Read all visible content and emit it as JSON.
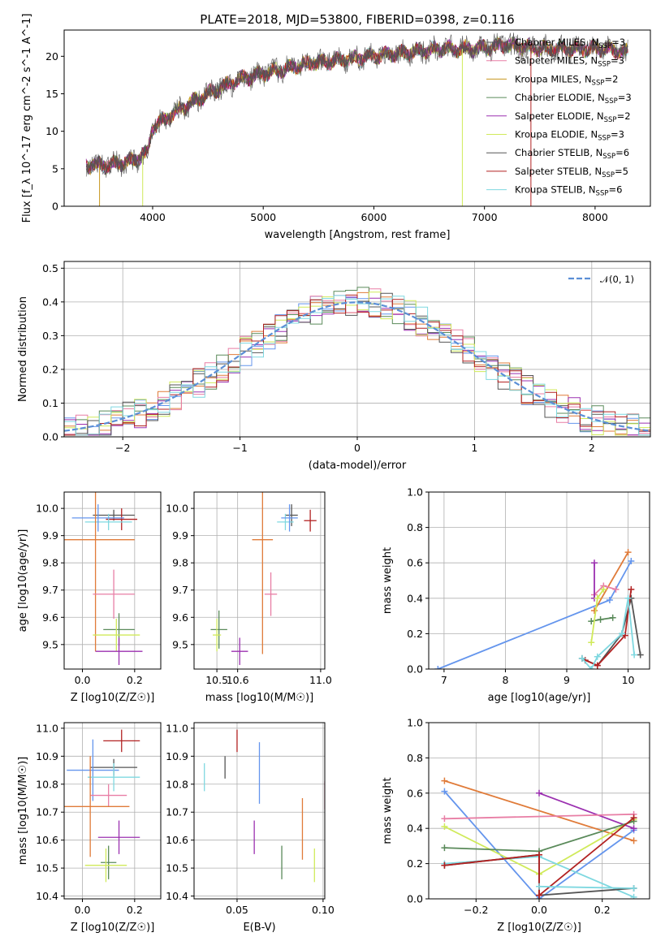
{
  "figure": {
    "title": "PLATE=2018, MJD=53800, FIBERID=0398, z=0.116"
  },
  "colors": {
    "chabrier_miles": "#6495ed",
    "salpeter_miles": "#e07b39",
    "kroupa_miles": "#e07b39",
    "chabrier_elodie": "#5a8a5a",
    "salpeter_elodie": "#9b30b0",
    "kroupa_elodie": "#d0ea5a",
    "chabrier_stelib": "#555555",
    "salpeter_stelib": "#b22222",
    "kroupa_stelib": "#7fd8e0",
    "pink": "#e87ea5",
    "gaussian": "#5b8fd6"
  },
  "chart_data": [
    {
      "id": "spectrum",
      "type": "line",
      "xlabel": "wavelength [Angstrom, rest frame]",
      "ylabel": "Flux [f_λ 10^-17 erg cm^-2 s^-1 A^-1]",
      "xlim": [
        3200,
        8500
      ],
      "ylim": [
        0,
        23.5
      ],
      "xticks": [
        "4000",
        "5000",
        "6000",
        "7000",
        "8000"
      ],
      "yticks": [
        "0",
        "5",
        "10",
        "15",
        "20"
      ],
      "legend_position": "right",
      "legend": [
        {
          "label": "Chabrier MILES, N_SSP=3",
          "color": "#555555"
        },
        {
          "label": "Salpeter MILES, N_SSP=3",
          "color": "#e87ea5"
        },
        {
          "label": "Kroupa MILES, N_SSP=2",
          "color": "#c8961e"
        },
        {
          "label": "Chabrier ELODIE, N_SSP=3",
          "color": "#5a8a5a"
        },
        {
          "label": "Salpeter ELODIE, N_SSP=2",
          "color": "#9b30b0"
        },
        {
          "label": "Kroupa ELODIE, N_SSP=3",
          "color": "#d0ea5a"
        },
        {
          "label": "Chabrier STELIB, N_SSP=6",
          "color": "#555555"
        },
        {
          "label": "Salpeter STELIB, N_SSP=5",
          "color": "#b22222"
        },
        {
          "label": "Kroupa STELIB, N_SSP=6",
          "color": "#7fd8e0"
        }
      ],
      "continuum": {
        "x": [
          3400,
          3600,
          3800,
          3950,
          4000,
          4200,
          4500,
          4800,
          5100,
          5400,
          5700,
          6000,
          6300,
          6600,
          6900,
          7200,
          7500,
          7800,
          8100,
          8300
        ],
        "y": [
          5.5,
          5.5,
          6.0,
          7.0,
          10.5,
          12.5,
          15.0,
          17.0,
          18.0,
          19.0,
          19.5,
          20.0,
          20.5,
          21.0,
          21.0,
          21.5,
          21.0,
          21.0,
          21.0,
          20.5
        ]
      }
    },
    {
      "id": "residuals",
      "type": "line",
      "xlabel": "(data-model)/error",
      "ylabel": "Normed distribution",
      "xlim": [
        -2.5,
        2.5
      ],
      "ylim": [
        0,
        0.52
      ],
      "xticks": [
        "−2",
        "−1",
        "0",
        "1",
        "2"
      ],
      "yticks": [
        "0.0",
        "0.1",
        "0.2",
        "0.3",
        "0.4",
        "0.5"
      ],
      "grid": true,
      "legend_position": "top-right",
      "legend": [
        {
          "label": "𝒩(0, 1)",
          "style": "dashed"
        }
      ]
    },
    {
      "id": "age-vs-Z",
      "type": "scatter",
      "xlabel": "Z [log10(Z/Z☉)]",
      "ylabel": "age  [log10(age/yr)]",
      "xlim": [
        -0.07,
        0.3
      ],
      "ylim": [
        9.41,
        10.06
      ],
      "xticks": [
        "0.0",
        "0.2"
      ],
      "yticks": [
        "9.5",
        "9.6",
        "9.7",
        "9.8",
        "9.9",
        "10.0"
      ],
      "grid": true,
      "points": [
        {
          "x": 0.12,
          "y": 9.975,
          "xerr": 0.08,
          "yerr": 0.02,
          "color": "#555555"
        },
        {
          "x": 0.15,
          "y": 9.96,
          "xerr": 0.06,
          "yerr": 0.04,
          "color": "#b22222"
        },
        {
          "x": 0.1,
          "y": 9.95,
          "xerr": 0.09,
          "yerr": 0.03,
          "color": "#7fd8e0"
        },
        {
          "x": 0.06,
          "y": 9.965,
          "xerr": 0.1,
          "yerr": 0.05,
          "color": "#6495ed"
        },
        {
          "x": 0.05,
          "y": 9.885,
          "xerr": 0.15,
          "yerr": 0.41,
          "color": "#e07b39"
        },
        {
          "x": 0.12,
          "y": 9.685,
          "xerr": 0.08,
          "yerr": 0.09,
          "color": "#e87ea5"
        },
        {
          "x": 0.14,
          "y": 9.555,
          "xerr": 0.06,
          "yerr": 0.06,
          "color": "#5a8a5a"
        },
        {
          "x": 0.13,
          "y": 9.535,
          "xerr": 0.09,
          "yerr": 0.06,
          "color": "#d0ea5a"
        },
        {
          "x": 0.14,
          "y": 9.475,
          "xerr": 0.09,
          "yerr": 0.05,
          "color": "#9b30b0"
        }
      ]
    },
    {
      "id": "age-vs-mass",
      "type": "scatter",
      "xlabel": "mass [log10(M/M☉)]",
      "ylabel": "",
      "xlim": [
        10.39,
        11.02
      ],
      "ylim": [
        9.41,
        10.06
      ],
      "xticks": [
        "10.5",
        "10.6",
        "11.0"
      ],
      "yticks": [
        "9.5",
        "9.6",
        "9.7",
        "9.8",
        "9.9",
        "10.0"
      ],
      "grid": true,
      "points": [
        {
          "x": 10.86,
          "y": 9.975,
          "xerr": 0.03,
          "yerr": 0.04,
          "color": "#555555"
        },
        {
          "x": 10.95,
          "y": 9.955,
          "xerr": 0.03,
          "yerr": 0.04,
          "color": "#b22222"
        },
        {
          "x": 10.83,
          "y": 9.95,
          "xerr": 0.04,
          "yerr": 0.03,
          "color": "#7fd8e0"
        },
        {
          "x": 10.85,
          "y": 9.965,
          "xerr": 0.04,
          "yerr": 0.05,
          "color": "#6495ed"
        },
        {
          "x": 10.72,
          "y": 9.885,
          "xerr": 0.05,
          "yerr": 0.42,
          "color": "#e07b39"
        },
        {
          "x": 10.76,
          "y": 9.685,
          "xerr": 0.03,
          "yerr": 0.08,
          "color": "#e87ea5"
        },
        {
          "x": 10.51,
          "y": 9.555,
          "xerr": 0.04,
          "yerr": 0.07,
          "color": "#5a8a5a"
        },
        {
          "x": 10.5,
          "y": 9.535,
          "xerr": 0.02,
          "yerr": 0.06,
          "color": "#d0ea5a"
        },
        {
          "x": 10.61,
          "y": 9.475,
          "xerr": 0.04,
          "yerr": 0.05,
          "color": "#9b30b0"
        }
      ]
    },
    {
      "id": "weight-vs-age",
      "type": "line",
      "xlabel": "age  [log10(age/yr)]",
      "ylabel": "mass weight",
      "xlim": [
        6.75,
        10.35
      ],
      "ylim": [
        0,
        1.0
      ],
      "xticks": [
        "7",
        "8",
        "9",
        "10"
      ],
      "yticks": [
        "0.0",
        "0.2",
        "0.4",
        "0.6",
        "0.8",
        "1.0"
      ],
      "grid": true,
      "series": [
        {
          "color": "#6495ed",
          "x": [
            6.9,
            9.7,
            10.05
          ],
          "y": [
            0.0,
            0.39,
            0.61
          ]
        },
        {
          "color": "#e07b39",
          "x": [
            9.45,
            10.0
          ],
          "y": [
            0.33,
            0.66
          ]
        },
        {
          "color": "#e87ea5",
          "x": [
            9.45,
            9.6,
            9.8
          ],
          "y": [
            0.42,
            0.47,
            0.45
          ]
        },
        {
          "color": "#9b30b0",
          "x": [
            9.45,
            9.45
          ],
          "y": [
            0.4,
            0.6
          ]
        },
        {
          "color": "#5a8a5a",
          "x": [
            9.4,
            9.55,
            9.75
          ],
          "y": [
            0.27,
            0.28,
            0.29
          ]
        },
        {
          "color": "#d0ea5a",
          "x": [
            9.4,
            9.5,
            9.6
          ],
          "y": [
            0.15,
            0.4,
            0.45
          ]
        },
        {
          "color": "#555555",
          "x": [
            9.25,
            9.5,
            9.9,
            10.05,
            10.2
          ],
          "y": [
            0.06,
            0.02,
            0.2,
            0.4,
            0.08
          ]
        },
        {
          "color": "#b22222",
          "x": [
            9.3,
            9.5,
            9.95,
            10.05
          ],
          "y": [
            0.05,
            0.02,
            0.19,
            0.45
          ]
        },
        {
          "color": "#7fd8e0",
          "x": [
            9.25,
            9.4,
            9.5,
            9.9,
            10.0,
            10.1
          ],
          "y": [
            0.06,
            0.0,
            0.07,
            0.2,
            0.4,
            0.08
          ]
        }
      ]
    },
    {
      "id": "mass-vs-Z",
      "type": "scatter",
      "xlabel": "Z [log10(Z/Z☉)]",
      "ylabel": "mass [log10(M/M☉)]",
      "xlim": [
        -0.07,
        0.3
      ],
      "ylim": [
        10.39,
        11.02
      ],
      "xticks": [
        "0.0",
        "0.2"
      ],
      "yticks": [
        "10.4",
        "10.5",
        "10.6",
        "10.7",
        "10.8",
        "10.9",
        "11.0"
      ],
      "grid": true,
      "points": [
        {
          "x": 0.15,
          "y": 10.955,
          "xerr": 0.07,
          "yerr": 0.04,
          "color": "#b22222"
        },
        {
          "x": 0.12,
          "y": 10.86,
          "xerr": 0.09,
          "yerr": 0.03,
          "color": "#555555"
        },
        {
          "x": 0.04,
          "y": 10.85,
          "xerr": 0.1,
          "yerr": 0.11,
          "color": "#6495ed"
        },
        {
          "x": 0.12,
          "y": 10.825,
          "xerr": 0.1,
          "yerr": 0.05,
          "color": "#7fd8e0"
        },
        {
          "x": 0.1,
          "y": 10.76,
          "xerr": 0.07,
          "yerr": 0.04,
          "color": "#e87ea5"
        },
        {
          "x": 0.03,
          "y": 10.72,
          "xerr": 0.15,
          "yerr": 0.18,
          "color": "#e07b39"
        },
        {
          "x": 0.14,
          "y": 10.61,
          "xerr": 0.08,
          "yerr": 0.06,
          "color": "#9b30b0"
        },
        {
          "x": 0.1,
          "y": 10.52,
          "xerr": 0.03,
          "yerr": 0.06,
          "color": "#5a8a5a"
        },
        {
          "x": 0.09,
          "y": 10.51,
          "xerr": 0.08,
          "yerr": 0.06,
          "color": "#d0ea5a"
        }
      ]
    },
    {
      "id": "mass-vs-EBV",
      "type": "scatter",
      "xlabel": "E(B-V)",
      "ylabel": "",
      "xlim": [
        0.025,
        0.101
      ],
      "ylim": [
        10.39,
        11.02
      ],
      "xticks": [
        "0.05",
        "0.10"
      ],
      "yticks": [
        "10.4",
        "10.5",
        "10.6",
        "10.7",
        "10.8",
        "10.9",
        "11.0"
      ],
      "grid": true,
      "points": [
        {
          "x": 0.05,
          "y": 10.955,
          "yerr": 0.04,
          "color": "#b22222"
        },
        {
          "x": 0.043,
          "y": 10.86,
          "yerr": 0.04,
          "color": "#555555"
        },
        {
          "x": 0.063,
          "y": 10.84,
          "yerr": 0.11,
          "color": "#6495ed"
        },
        {
          "x": 0.031,
          "y": 10.825,
          "yerr": 0.05,
          "color": "#7fd8e0"
        },
        {
          "x": 0.101,
          "y": 10.76,
          "yerr": 0.05,
          "color": "#e87ea5"
        },
        {
          "x": 0.088,
          "y": 10.64,
          "yerr": 0.11,
          "color": "#e07b39"
        },
        {
          "x": 0.06,
          "y": 10.61,
          "yerr": 0.06,
          "color": "#9b30b0"
        },
        {
          "x": 0.076,
          "y": 10.52,
          "yerr": 0.06,
          "color": "#5a8a5a"
        },
        {
          "x": 0.095,
          "y": 10.51,
          "yerr": 0.06,
          "color": "#d0ea5a"
        }
      ]
    },
    {
      "id": "weight-vs-Z",
      "type": "line",
      "xlabel": "Z [log10(Z/Z☉)]",
      "ylabel": "mass weight",
      "xlim": [
        -0.35,
        0.35
      ],
      "ylim": [
        0,
        1.0
      ],
      "xticks": [
        "−0.2",
        "0.0",
        "0.2"
      ],
      "yticks": [
        "0.0",
        "0.2",
        "0.4",
        "0.6",
        "0.8",
        "1.0"
      ],
      "grid": true,
      "series": [
        {
          "color": "#e07b39",
          "x": [
            -0.3,
            0.3
          ],
          "y": [
            0.67,
            0.33
          ]
        },
        {
          "color": "#6495ed",
          "x": [
            -0.3,
            0.0,
            0.3
          ],
          "y": [
            0.61,
            0.0,
            0.39
          ]
        },
        {
          "color": "#9b30b0",
          "x": [
            0.0,
            0.3
          ],
          "y": [
            0.6,
            0.4
          ]
        },
        {
          "color": "#e87ea5",
          "x": [
            -0.3,
            0.3
          ],
          "y": [
            0.455,
            0.48
          ]
        },
        {
          "color": "#d0ea5a",
          "x": [
            -0.3,
            0.0,
            0.3
          ],
          "y": [
            0.41,
            0.14,
            0.45
          ]
        },
        {
          "color": "#5a8a5a",
          "x": [
            -0.3,
            0.0,
            0.3
          ],
          "y": [
            0.29,
            0.27,
            0.44
          ]
        },
        {
          "color": "#7fd8e0",
          "x": [
            -0.3,
            0.0,
            0.3
          ],
          "y": [
            0.2,
            0.24,
            0.01
          ]
        },
        {
          "color": "#555555",
          "x": [
            -0.3,
            0.0,
            0.0,
            0.3
          ],
          "y": [
            0.19,
            0.25,
            0.02,
            0.06
          ]
        },
        {
          "color": "#b22222",
          "x": [
            -0.3,
            0.0,
            0.0,
            0.3
          ],
          "y": [
            0.19,
            0.25,
            0.02,
            0.46
          ]
        },
        {
          "color": "#7fd8e0",
          "x": [
            0.0,
            0.3
          ],
          "y": [
            0.07,
            0.06
          ]
        }
      ]
    }
  ]
}
